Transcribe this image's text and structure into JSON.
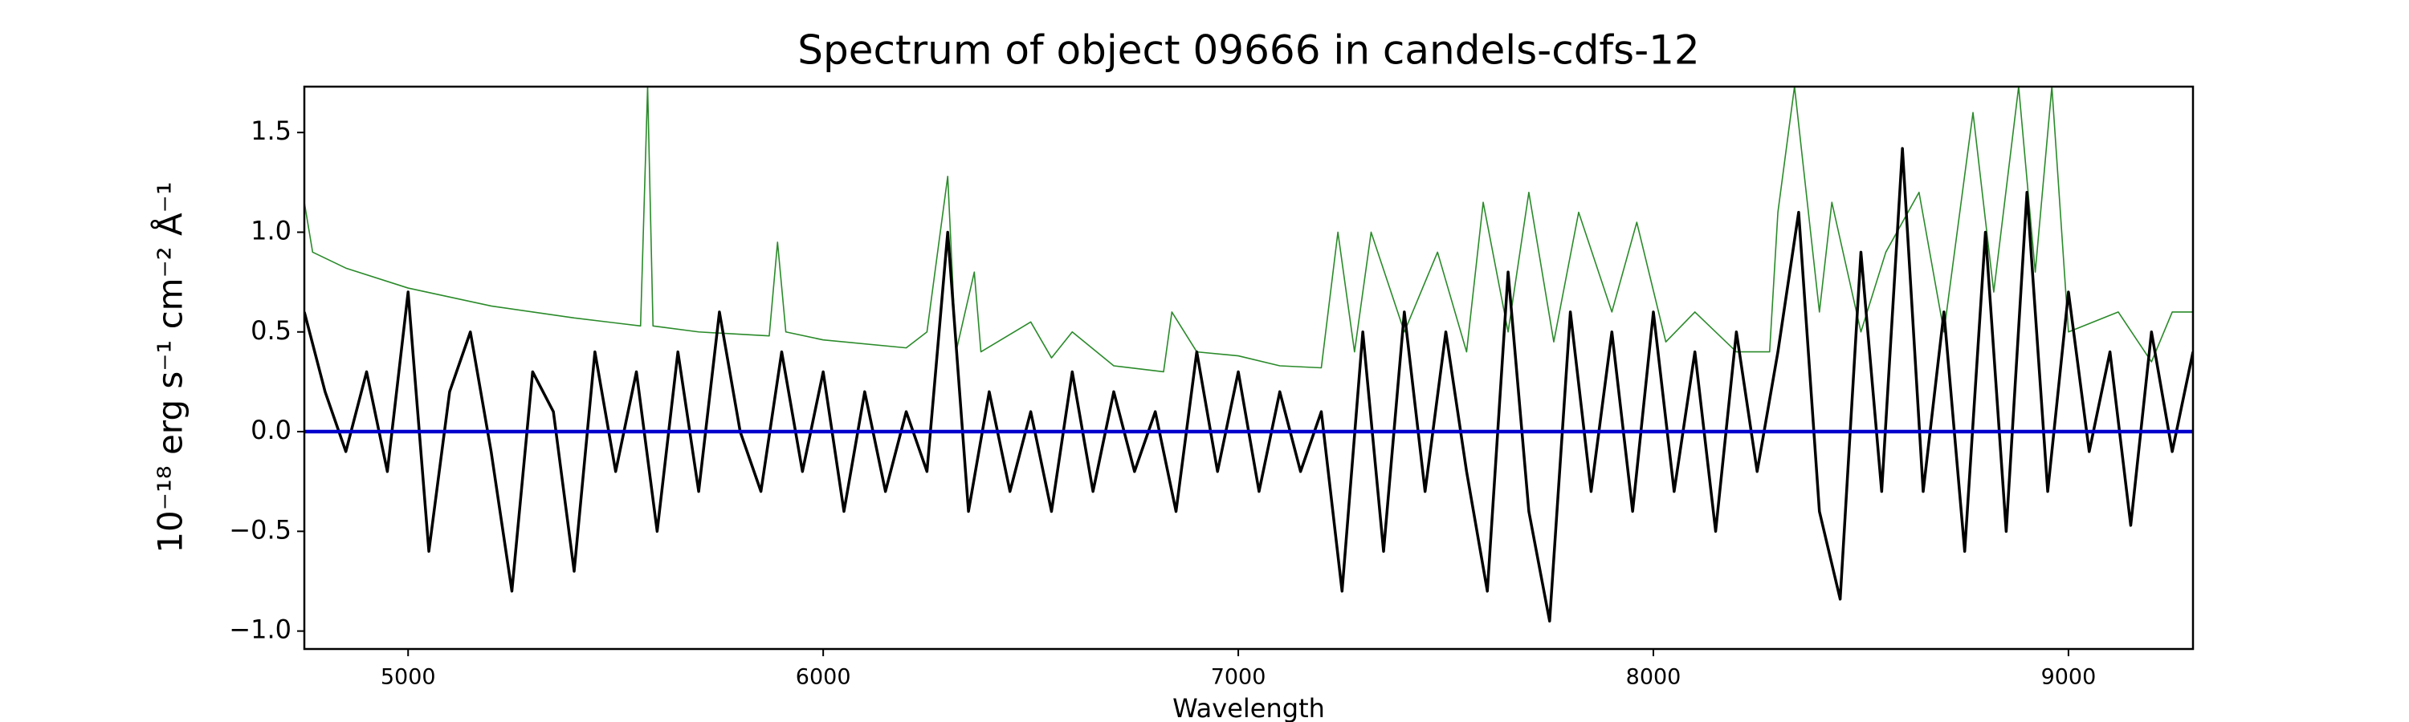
{
  "chart_data": {
    "type": "line",
    "title": "Spectrum of object 09666 in candels-cdfs-12",
    "xlabel": "Wavelength",
    "ylabel": "10⁻¹⁸ erg s⁻¹ cm⁻² Å⁻¹",
    "xlim": [
      4750,
      9300
    ],
    "ylim": [
      -1.09,
      1.73
    ],
    "xticks": [
      5000,
      6000,
      7000,
      8000,
      9000
    ],
    "yticks": [
      {
        "value": -1,
        "label": "−1.0"
      },
      {
        "value": -0.5,
        "label": "−0.5"
      },
      {
        "value": 0,
        "label": "0.0"
      },
      0.5,
      {
        "value": 1,
        "label": "1.0"
      },
      1.5
    ],
    "series": [
      {
        "color": "#2a8a2a",
        "width": 1.6,
        "x": [
          4750,
          4770,
          4850,
          5000,
          5200,
          5400,
          5560,
          5577,
          5590,
          5700,
          5870,
          5890,
          5910,
          6000,
          6200,
          6250,
          6300,
          6320,
          6364,
          6380,
          6500,
          6550,
          6600,
          6700,
          6820,
          6840,
          6900,
          7000,
          7100,
          7200,
          7240,
          7280,
          7320,
          7400,
          7480,
          7550,
          7590,
          7650,
          7700,
          7760,
          7820,
          7900,
          7960,
          8030,
          8100,
          8200,
          8280,
          8300,
          8340,
          8400,
          8430,
          8500,
          8560,
          8640,
          8700,
          8770,
          8820,
          8880,
          8920,
          8960,
          9000,
          9120,
          9200,
          9250,
          9300
        ],
        "values": [
          1.15,
          0.9,
          0.82,
          0.72,
          0.63,
          0.57,
          0.53,
          1.73,
          0.53,
          0.5,
          0.48,
          0.95,
          0.5,
          0.46,
          0.42,
          0.5,
          1.28,
          0.4,
          0.8,
          0.4,
          0.55,
          0.37,
          0.5,
          0.33,
          0.3,
          0.6,
          0.4,
          0.38,
          0.33,
          0.32,
          1.0,
          0.4,
          1.0,
          0.5,
          0.9,
          0.4,
          1.15,
          0.5,
          1.2,
          0.45,
          1.1,
          0.6,
          1.05,
          0.45,
          0.6,
          0.4,
          0.4,
          1.1,
          1.73,
          0.6,
          1.15,
          0.5,
          0.9,
          1.2,
          0.5,
          1.6,
          0.7,
          1.73,
          0.8,
          1.73,
          0.5,
          0.6,
          0.35,
          0.6,
          0.6
        ]
      },
      {
        "color": "#000000",
        "width": 3.5,
        "x": [
          4750,
          4800,
          4850,
          4900,
          4950,
          5000,
          5050,
          5100,
          5150,
          5200,
          5250,
          5300,
          5350,
          5400,
          5450,
          5500,
          5550,
          5600,
          5650,
          5700,
          5750,
          5800,
          5850,
          5900,
          5950,
          6000,
          6050,
          6100,
          6150,
          6200,
          6250,
          6300,
          6350,
          6400,
          6450,
          6500,
          6550,
          6600,
          6650,
          6700,
          6750,
          6800,
          6850,
          6900,
          6950,
          7000,
          7050,
          7100,
          7150,
          7200,
          7250,
          7300,
          7350,
          7400,
          7450,
          7500,
          7550,
          7600,
          7650,
          7700,
          7750,
          7800,
          7850,
          7900,
          7950,
          8000,
          8050,
          8100,
          8150,
          8200,
          8250,
          8300,
          8350,
          8400,
          8450,
          8500,
          8550,
          8600,
          8650,
          8700,
          8750,
          8800,
          8850,
          8900,
          8950,
          9000,
          9050,
          9100,
          9150,
          9200,
          9250,
          9300
        ],
        "values": [
          0.6,
          0.2,
          -0.1,
          0.3,
          -0.2,
          0.7,
          -0.6,
          0.2,
          0.5,
          -0.1,
          -0.8,
          0.3,
          0.1,
          -0.7,
          0.4,
          -0.2,
          0.3,
          -0.5,
          0.4,
          -0.3,
          0.6,
          0.0,
          -0.3,
          0.4,
          -0.2,
          0.3,
          -0.4,
          0.2,
          -0.3,
          0.1,
          -0.2,
          1.0,
          -0.4,
          0.2,
          -0.3,
          0.1,
          -0.4,
          0.3,
          -0.3,
          0.2,
          -0.2,
          0.1,
          -0.4,
          0.4,
          -0.2,
          0.3,
          -0.3,
          0.2,
          -0.2,
          0.1,
          -0.8,
          0.5,
          -0.6,
          0.6,
          -0.3,
          0.5,
          -0.2,
          -0.8,
          0.8,
          -0.4,
          -0.95,
          0.6,
          -0.3,
          0.5,
          -0.4,
          0.6,
          -0.3,
          0.4,
          -0.5,
          0.5,
          -0.2,
          0.4,
          1.1,
          -0.4,
          -0.84,
          0.9,
          -0.3,
          1.42,
          -0.3,
          0.6,
          -0.6,
          1.0,
          -0.5,
          1.2,
          -0.3,
          0.7,
          -0.1,
          0.4,
          -0.47,
          0.5,
          -0.1,
          0.4
        ]
      },
      {
        "color": "#0000cc",
        "width": 4.5,
        "x": [
          4750,
          9300
        ],
        "values": [
          0,
          0
        ]
      }
    ]
  }
}
